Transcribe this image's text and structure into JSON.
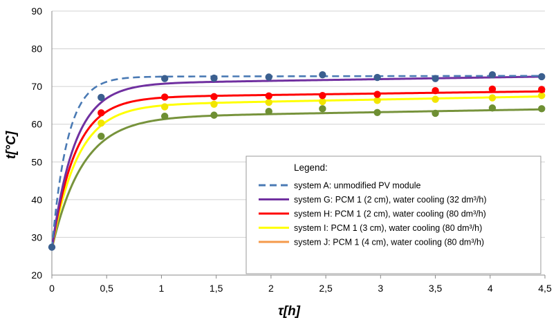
{
  "chart_data": {
    "type": "line",
    "xlabel": "τ[h]",
    "ylabel": "t[°C]",
    "xlim": [
      0,
      4.5
    ],
    "ylim": [
      20,
      90
    ],
    "x_ticks": [
      "0",
      "0,5",
      "1",
      "1,5",
      "2",
      "2,5",
      "3",
      "3,5",
      "4",
      "4,5"
    ],
    "y_ticks": [
      "20",
      "30",
      "40",
      "50",
      "60",
      "70",
      "80",
      "90"
    ],
    "grid": "horizontal",
    "legend": {
      "title": "Legend:",
      "placement": "bottom-right",
      "entries": [
        "system A: unmodified PV module",
        "system G: PCM 1 (2 cm), water cooling (32 dm³/h)",
        "system H: PCM 1 (2 cm), water cooling (80 dm³/h)",
        "system I:  PCM 1 (3 cm), water cooling (80 dm³/h)",
        "system J: PCM 1 (4 cm), water cooling (80 dm³/h)"
      ]
    },
    "series": [
      {
        "name": "system A: unmodified PV module",
        "color": "#4a7ab4",
        "dash": true,
        "marker_color": "#3b5f8f",
        "points": [
          [
            0,
            27.4
          ],
          [
            0.45,
            67.1
          ],
          [
            1.03,
            72.1
          ],
          [
            1.48,
            72.2
          ],
          [
            1.98,
            72.5
          ],
          [
            2.47,
            73.1
          ],
          [
            2.97,
            72.4
          ],
          [
            3.5,
            72.1
          ],
          [
            4.02,
            73.1
          ],
          [
            4.47,
            72.6
          ]
        ],
        "fit": {
          "start": 27,
          "plateau": 72.6,
          "k": 7.0,
          "slope": 0.05
        }
      },
      {
        "name": "system G: PCM 1 (2 cm), water cooling (32 dm³/h)",
        "color": "#7030a0",
        "dash": false,
        "marker_color": null,
        "points": [],
        "fit": {
          "start": 27,
          "plateau": 70.6,
          "k": 4.8,
          "slope": 0.45
        }
      },
      {
        "name": "system H: PCM 1 (2 cm), water cooling (80 dm³/h)",
        "color": "#ff0000",
        "dash": false,
        "marker_color": "#ff0000",
        "points": [
          [
            0.45,
            63.0
          ],
          [
            1.03,
            67.2
          ],
          [
            1.48,
            67.3
          ],
          [
            1.98,
            67.5
          ],
          [
            2.47,
            67.6
          ],
          [
            2.97,
            67.9
          ],
          [
            3.5,
            68.9
          ],
          [
            4.02,
            69.3
          ],
          [
            4.47,
            69.2
          ]
        ],
        "fit": {
          "start": 27,
          "plateau": 67.0,
          "k": 4.7,
          "slope": 0.38
        }
      },
      {
        "name": "system I:  PCM 1 (3 cm), water cooling (80 dm³/h)",
        "color": "#ffff00",
        "dash": false,
        "marker_color": "#f2e500",
        "points": [
          [
            0.45,
            60.3
          ],
          [
            1.03,
            64.6
          ],
          [
            1.48,
            65.3
          ],
          [
            1.98,
            65.8
          ],
          [
            2.47,
            66.0
          ],
          [
            2.97,
            66.3
          ],
          [
            3.5,
            66.6
          ],
          [
            4.02,
            67.0
          ],
          [
            4.47,
            67.6
          ]
        ],
        "fit": {
          "start": 27,
          "plateau": 64.9,
          "k": 4.3,
          "slope": 0.55
        }
      },
      {
        "name": "system J: PCM 1 (4 cm), water cooling (80 dm³/h)",
        "color": "#f4994a",
        "dash": false,
        "marker_color": null,
        "points": [],
        "fit": null
      },
      {
        "name": "",
        "color": "#77933c",
        "dash": false,
        "marker_color": "#6e8f33",
        "points": [
          [
            0.45,
            56.8
          ],
          [
            1.03,
            62.1
          ],
          [
            1.48,
            62.4
          ],
          [
            1.98,
            63.4
          ],
          [
            2.47,
            64.1
          ],
          [
            2.97,
            63.1
          ],
          [
            3.5,
            62.9
          ],
          [
            4.02,
            64.3
          ],
          [
            4.47,
            64.1
          ]
        ],
        "fit": {
          "start": 27,
          "plateau": 61.7,
          "k": 3.6,
          "slope": 0.5
        }
      }
    ]
  }
}
